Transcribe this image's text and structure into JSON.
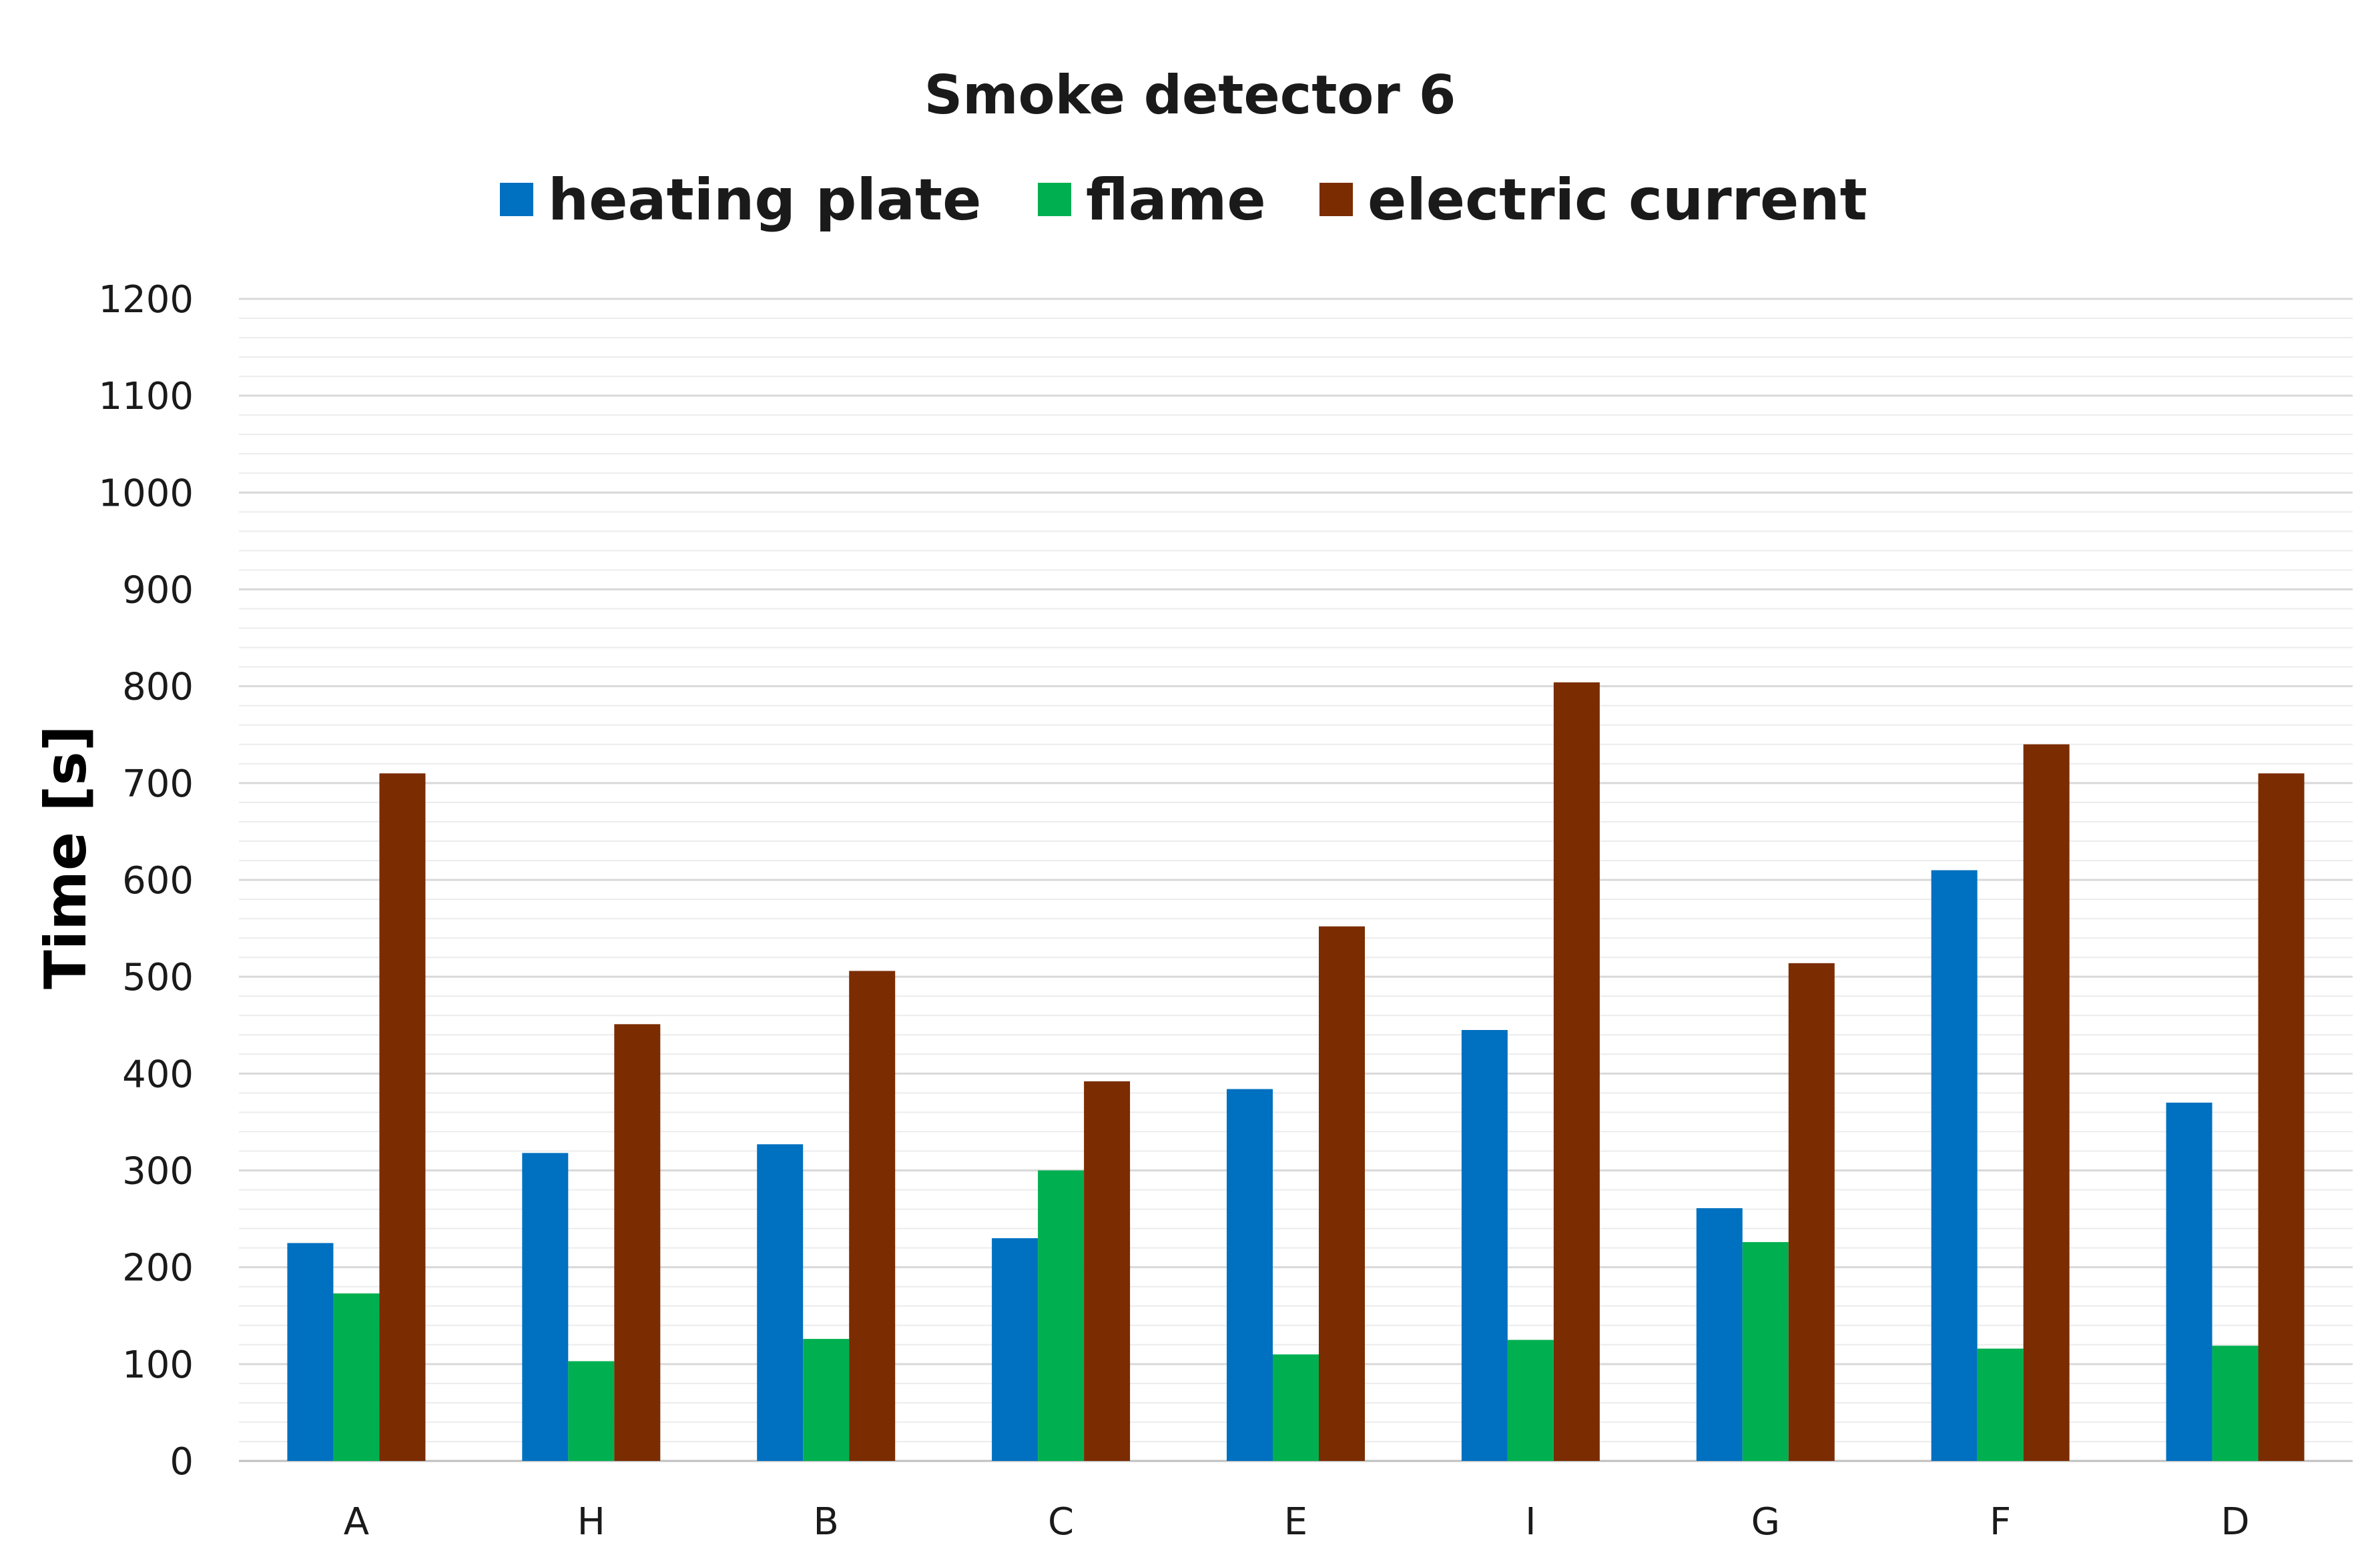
{
  "chart_data": {
    "type": "bar",
    "title": "Smoke detector 6",
    "xlabel": "",
    "ylabel": "Time [s]",
    "ylim": [
      0,
      1200
    ],
    "yticks": [
      0,
      100,
      200,
      300,
      400,
      500,
      600,
      700,
      800,
      900,
      1000,
      1100,
      1200
    ],
    "minor_grid_step": 20,
    "grid": true,
    "legend_position": "top",
    "categories": [
      "A",
      "H",
      "B",
      "C",
      "E",
      "I",
      "G",
      "F",
      "D"
    ],
    "series": [
      {
        "name": "heating plate",
        "color": "#0070C0",
        "values": [
          225,
          318,
          327,
          230,
          384,
          445,
          261,
          610,
          370
        ]
      },
      {
        "name": "flame",
        "color": "#00B050",
        "values": [
          173,
          103,
          126,
          300,
          110,
          125,
          226,
          116,
          119
        ]
      },
      {
        "name": "electric current",
        "color": "#7B2C00",
        "values": [
          710,
          451,
          506,
          392,
          552,
          804,
          514,
          740,
          710
        ]
      }
    ]
  }
}
